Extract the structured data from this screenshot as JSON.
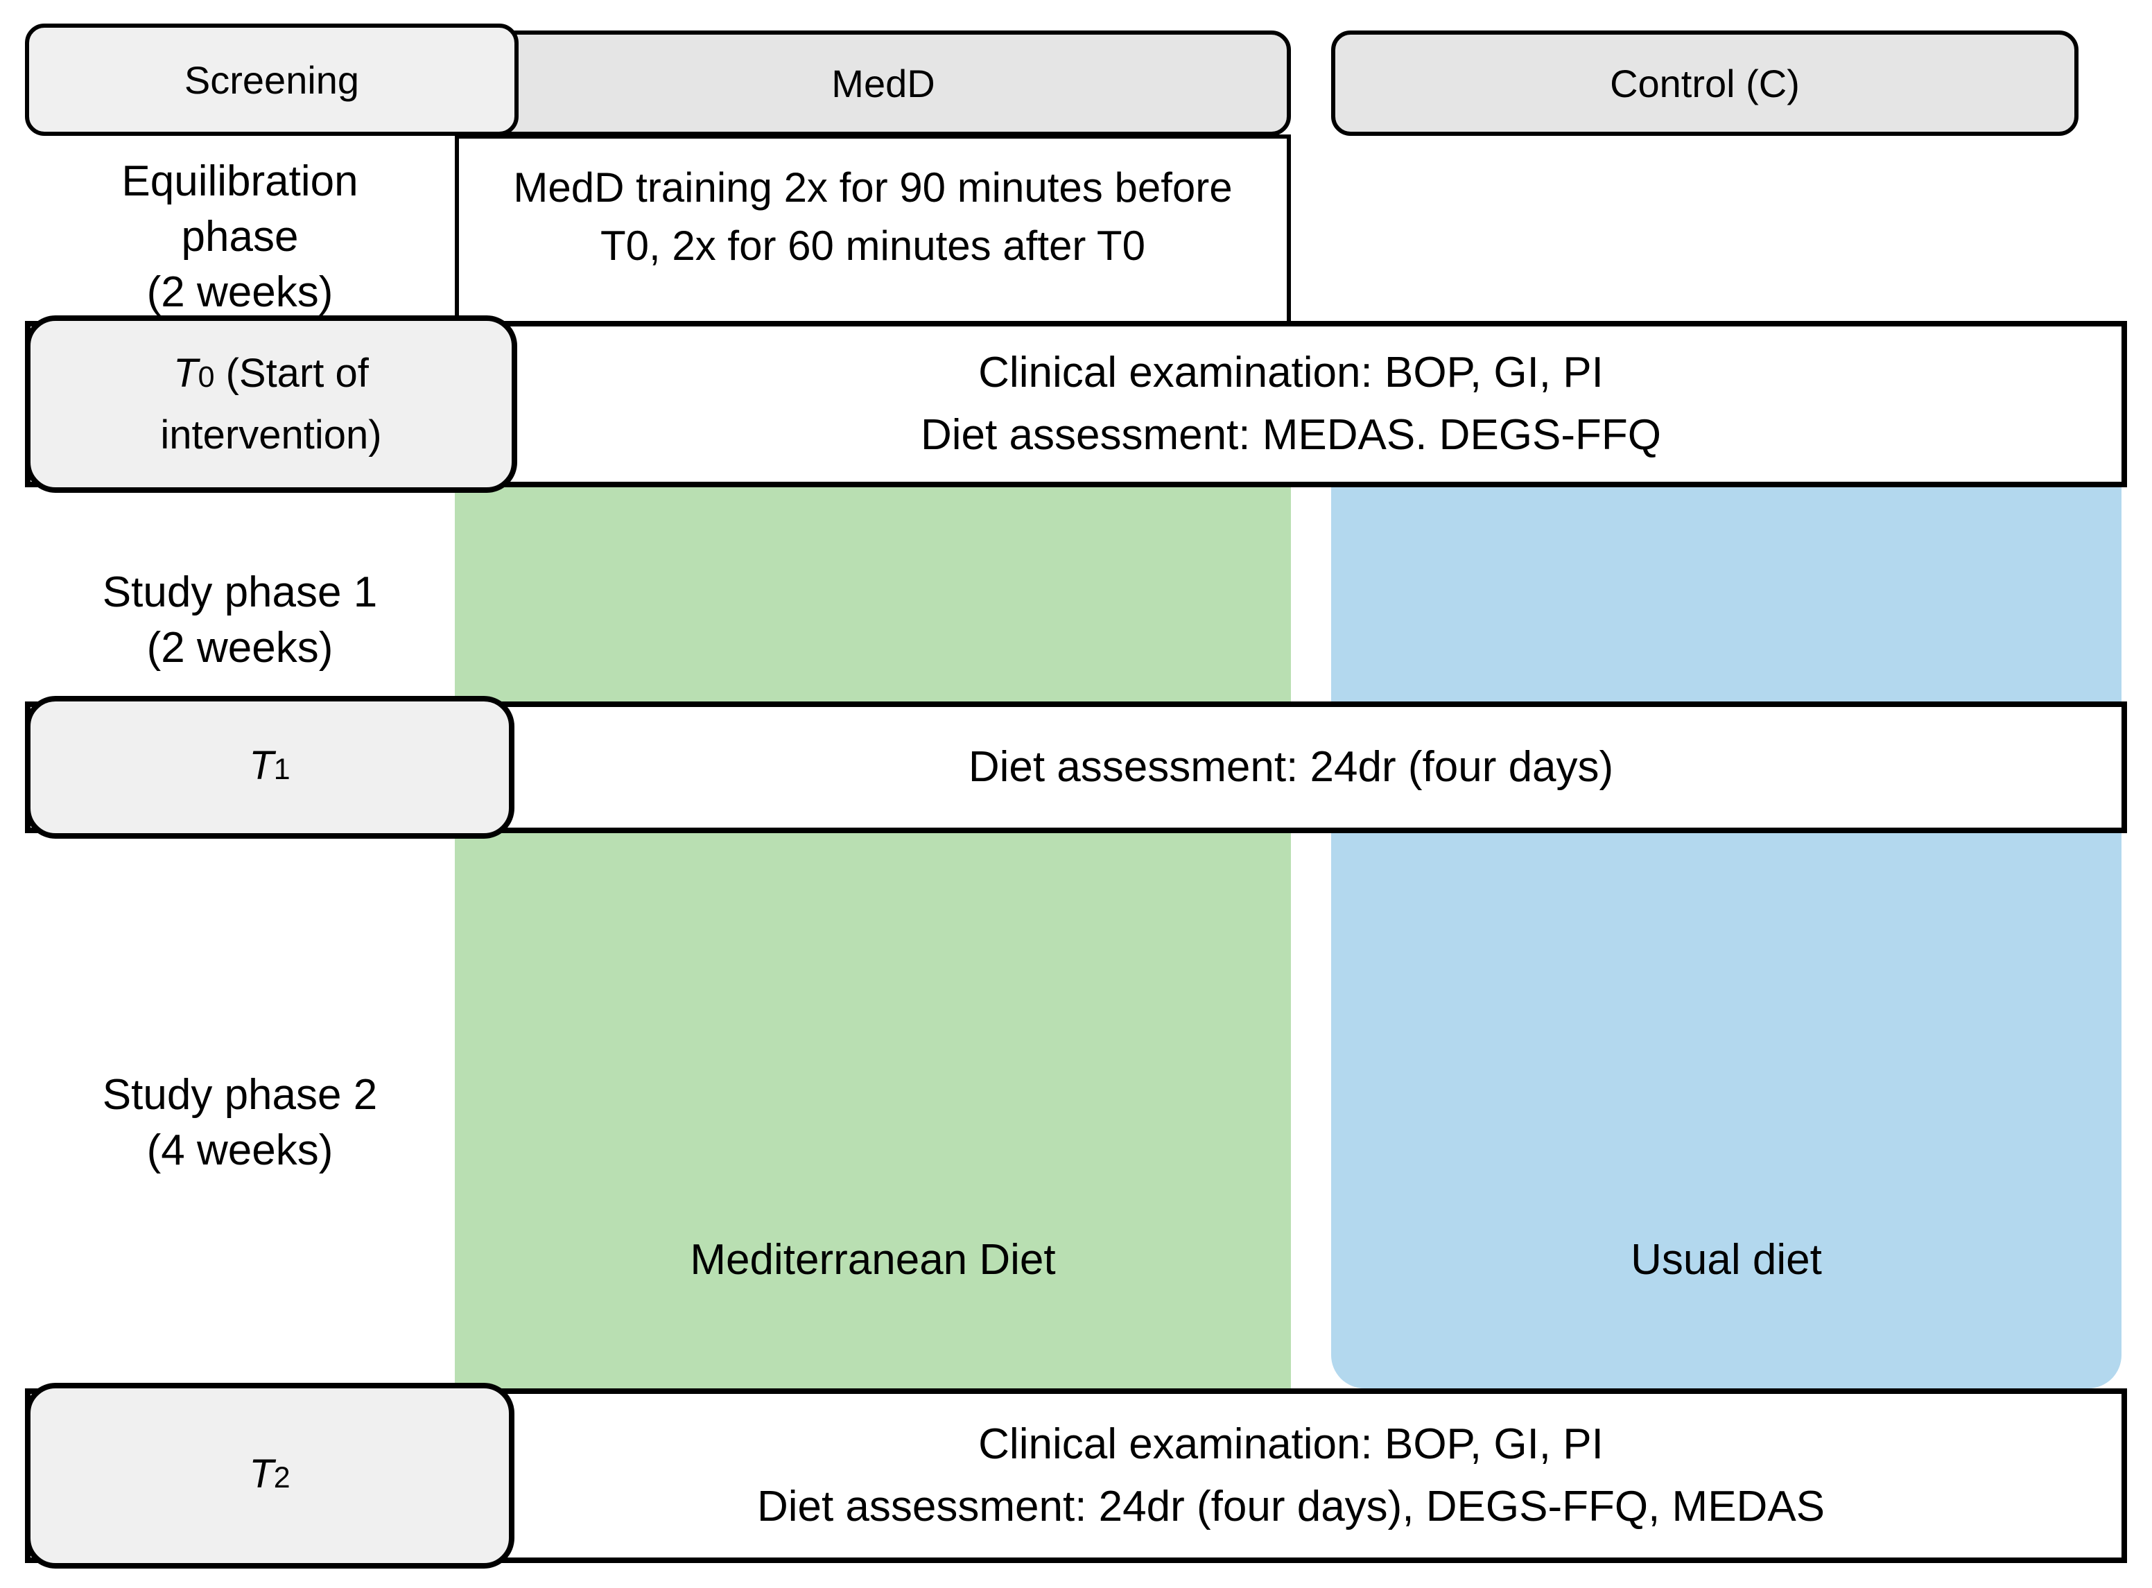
{
  "colors": {
    "green": "#b9dfb2",
    "blue": "#b3d8ee",
    "header-fill": "#e5e5e5",
    "label-fill": "#f0f0f0",
    "border": "#000000"
  },
  "headers": {
    "screening": "Screening",
    "medd": "MedD",
    "control": "Control (C)"
  },
  "left_column": {
    "equilibration": {
      "line1": "Equilibration",
      "line2": "phase",
      "line3": "(2 weeks)"
    },
    "phase1": {
      "line1": "Study phase 1",
      "line2": "(2 weeks)"
    },
    "phase2": {
      "line1": "Study phase 2",
      "line2": "(4 weeks)"
    }
  },
  "training_box": {
    "line1": "MedD training 2x for 90 minutes before",
    "line2": "T0, 2x for 60 minutes after T0"
  },
  "timepoints": {
    "t0": {
      "label_letter": "T",
      "label_digit": "0",
      "label_suffix": " (Start of",
      "label_line2": "intervention)",
      "line1": "Clinical examination: BOP, GI, PI",
      "line2": "Diet assessment: MEDAS. DEGS-FFQ"
    },
    "t1": {
      "label_letter": "T",
      "label_digit": "1",
      "line1": "Diet assessment: 24dr (four days)"
    },
    "t2": {
      "label_letter": "T",
      "label_digit": "2",
      "line1": "Clinical examination: BOP, GI, PI",
      "line2": "Diet assessment: 24dr (four days), DEGS-FFQ, MEDAS"
    }
  },
  "arms": {
    "medd_label": "Mediterranean Diet",
    "control_label": "Usual diet"
  }
}
